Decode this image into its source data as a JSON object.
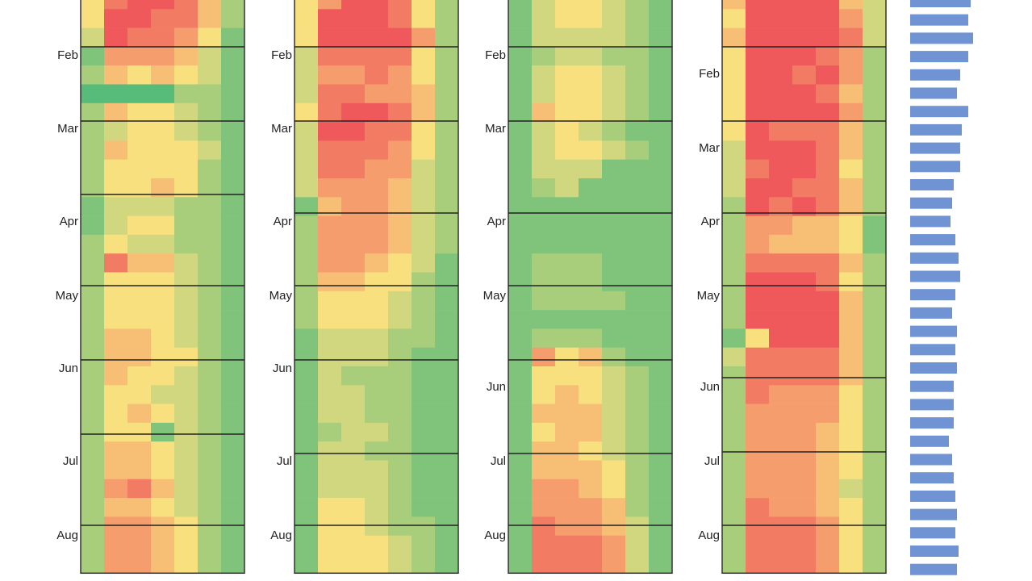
{
  "chart_data": [
    {
      "type": "heatmap",
      "clim": [
        1,
        9
      ],
      "colors": [
        "#57bb79",
        "#f9e07f",
        "#f0595b"
      ],
      "months": [
        "Feb",
        "Mar",
        "Apr",
        "May",
        "Jun",
        "Jul",
        "Aug"
      ],
      "rows": [
        [
          5,
          8,
          9,
          9,
          8,
          6,
          3
        ],
        [
          5,
          9,
          9,
          8,
          8,
          6,
          3
        ],
        [
          4,
          9,
          8,
          8,
          7,
          5,
          2
        ],
        [
          2,
          7,
          7,
          7,
          6,
          4,
          2
        ],
        [
          3,
          6,
          5,
          6,
          5,
          4,
          2
        ],
        [
          1,
          1,
          1,
          1,
          3,
          3,
          2
        ],
        [
          3,
          6,
          5,
          5,
          4,
          3,
          2
        ],
        [
          3,
          4,
          5,
          5,
          4,
          3,
          2
        ],
        [
          3,
          6,
          5,
          5,
          5,
          4,
          2
        ],
        [
          3,
          5,
          5,
          5,
          5,
          3,
          2
        ],
        [
          3,
          5,
          5,
          6,
          5,
          3,
          2
        ],
        [
          2,
          4,
          4,
          4,
          3,
          3,
          2
        ],
        [
          2,
          4,
          5,
          5,
          3,
          3,
          2
        ],
        [
          3,
          5,
          4,
          4,
          3,
          3,
          2
        ],
        [
          3,
          8,
          6,
          6,
          4,
          3,
          2
        ],
        [
          3,
          5,
          5,
          5,
          4,
          3,
          2
        ],
        [
          3,
          5,
          5,
          5,
          4,
          3,
          2
        ],
        [
          3,
          5,
          5,
          5,
          4,
          3,
          2
        ],
        [
          3,
          6,
          6,
          5,
          4,
          3,
          2
        ],
        [
          3,
          6,
          6,
          5,
          5,
          3,
          2
        ],
        [
          3,
          6,
          5,
          5,
          4,
          3,
          2
        ],
        [
          3,
          5,
          5,
          4,
          4,
          3,
          2
        ],
        [
          3,
          5,
          6,
          5,
          4,
          3,
          2
        ],
        [
          3,
          5,
          5,
          2,
          4,
          3,
          2
        ],
        [
          3,
          6,
          6,
          5,
          4,
          3,
          2
        ],
        [
          3,
          6,
          6,
          5,
          4,
          3,
          2
        ],
        [
          3,
          7,
          8,
          6,
          4,
          3,
          2
        ],
        [
          3,
          6,
          6,
          5,
          4,
          3,
          2
        ],
        [
          3,
          7,
          7,
          6,
          5,
          3,
          2
        ],
        [
          3,
          7,
          7,
          6,
          5,
          3,
          2
        ],
        [
          3,
          7,
          7,
          6,
          5,
          3,
          2
        ]
      ]
    },
    {
      "type": "heatmap",
      "clim": [
        1,
        9
      ],
      "colors": [
        "#57bb79",
        "#f9e07f",
        "#f0595b"
      ],
      "months": [
        "Feb",
        "Mar",
        "Apr",
        "May",
        "Jun",
        "Jul",
        "Aug"
      ],
      "rows": [
        [
          5,
          7,
          9,
          9,
          8,
          5,
          3
        ],
        [
          5,
          9,
          9,
          9,
          8,
          5,
          3
        ],
        [
          5,
          9,
          9,
          9,
          9,
          7,
          3
        ],
        [
          4,
          8,
          8,
          8,
          8,
          5,
          3
        ],
        [
          4,
          7,
          7,
          8,
          7,
          5,
          3
        ],
        [
          4,
          8,
          8,
          7,
          7,
          6,
          3
        ],
        [
          5,
          8,
          9,
          9,
          8,
          6,
          3
        ],
        [
          4,
          9,
          9,
          8,
          8,
          5,
          3
        ],
        [
          4,
          8,
          8,
          8,
          7,
          5,
          3
        ],
        [
          4,
          8,
          8,
          7,
          7,
          4,
          3
        ],
        [
          4,
          7,
          7,
          7,
          6,
          4,
          3
        ],
        [
          2,
          6,
          7,
          7,
          6,
          4,
          3
        ],
        [
          3,
          7,
          7,
          7,
          6,
          4,
          3
        ],
        [
          3,
          7,
          7,
          7,
          6,
          4,
          3
        ],
        [
          3,
          7,
          7,
          6,
          5,
          4,
          2
        ],
        [
          3,
          6,
          6,
          5,
          5,
          3,
          2
        ],
        [
          3,
          5,
          5,
          5,
          4,
          3,
          2
        ],
        [
          3,
          5,
          5,
          5,
          4,
          3,
          2
        ],
        [
          2,
          4,
          4,
          4,
          3,
          3,
          2
        ],
        [
          2,
          4,
          4,
          4,
          3,
          2,
          2
        ],
        [
          2,
          4,
          3,
          3,
          3,
          2,
          2
        ],
        [
          2,
          4,
          4,
          3,
          3,
          2,
          2
        ],
        [
          2,
          4,
          4,
          3,
          3,
          2,
          2
        ],
        [
          2,
          3,
          4,
          4,
          3,
          2,
          2
        ],
        [
          2,
          4,
          4,
          3,
          3,
          2,
          2
        ],
        [
          2,
          4,
          4,
          4,
          3,
          2,
          2
        ],
        [
          2,
          4,
          4,
          4,
          3,
          2,
          2
        ],
        [
          2,
          5,
          5,
          4,
          3,
          2,
          2
        ],
        [
          2,
          5,
          5,
          4,
          3,
          3,
          2
        ],
        [
          2,
          5,
          5,
          5,
          4,
          3,
          2
        ],
        [
          2,
          5,
          5,
          5,
          4,
          3,
          2
        ]
      ]
    },
    {
      "type": "heatmap",
      "clim": [
        1,
        9
      ],
      "colors": [
        "#57bb79",
        "#f9e07f",
        "#f0595b"
      ],
      "months": [
        "Feb",
        "Mar",
        "Apr",
        "May",
        "Jun",
        "Jul",
        "Aug"
      ],
      "rows": [
        [
          2,
          4,
          5,
          5,
          4,
          3,
          2
        ],
        [
          2,
          4,
          5,
          5,
          4,
          3,
          2
        ],
        [
          2,
          4,
          4,
          4,
          4,
          3,
          2
        ],
        [
          2,
          3,
          4,
          4,
          3,
          3,
          2
        ],
        [
          2,
          4,
          5,
          5,
          4,
          3,
          2
        ],
        [
          2,
          4,
          5,
          5,
          4,
          3,
          2
        ],
        [
          2,
          6,
          5,
          5,
          4,
          3,
          2
        ],
        [
          2,
          4,
          5,
          4,
          3,
          2,
          2
        ],
        [
          2,
          4,
          5,
          5,
          4,
          3,
          2
        ],
        [
          2,
          4,
          4,
          4,
          2,
          2,
          2
        ],
        [
          2,
          3,
          4,
          2,
          2,
          2,
          2
        ],
        [
          2,
          2,
          2,
          2,
          2,
          2,
          2
        ],
        [
          2,
          2,
          2,
          2,
          2,
          2,
          2
        ],
        [
          2,
          2,
          2,
          2,
          2,
          2,
          2
        ],
        [
          2,
          3,
          3,
          3,
          2,
          2,
          2
        ],
        [
          2,
          3,
          3,
          3,
          2,
          2,
          2
        ],
        [
          2,
          3,
          3,
          3,
          3,
          2,
          2
        ],
        [
          2,
          2,
          2,
          2,
          2,
          2,
          2
        ],
        [
          2,
          3,
          3,
          3,
          2,
          2,
          2
        ],
        [
          2,
          7,
          5,
          6,
          3,
          2,
          2
        ],
        [
          2,
          5,
          5,
          5,
          4,
          3,
          2
        ],
        [
          2,
          5,
          6,
          5,
          4,
          3,
          2
        ],
        [
          2,
          6,
          6,
          6,
          4,
          3,
          2
        ],
        [
          2,
          5,
          6,
          6,
          4,
          3,
          2
        ],
        [
          2,
          6,
          6,
          5,
          4,
          3,
          2
        ],
        [
          2,
          6,
          6,
          6,
          5,
          3,
          2
        ],
        [
          2,
          7,
          7,
          6,
          5,
          3,
          2
        ],
        [
          2,
          7,
          7,
          7,
          6,
          3,
          2
        ],
        [
          2,
          8,
          7,
          7,
          6,
          4,
          2
        ],
        [
          2,
          8,
          8,
          8,
          7,
          4,
          2
        ],
        [
          2,
          8,
          8,
          8,
          7,
          4,
          2
        ]
      ]
    },
    {
      "type": "heatmap",
      "clim": [
        1,
        9
      ],
      "colors": [
        "#57bb79",
        "#f9e07f",
        "#f0595b"
      ],
      "months": [
        "Feb",
        "Mar",
        "Apr",
        "May",
        "Jun",
        "Jul",
        "Aug"
      ],
      "rows": [
        [
          6,
          9,
          9,
          9,
          9,
          6,
          4
        ],
        [
          5,
          9,
          9,
          9,
          9,
          7,
          4
        ],
        [
          6,
          9,
          9,
          9,
          9,
          8,
          4
        ],
        [
          5,
          9,
          9,
          9,
          8,
          7,
          3
        ],
        [
          5,
          9,
          9,
          8,
          9,
          7,
          3
        ],
        [
          5,
          9,
          9,
          9,
          8,
          6,
          3
        ],
        [
          5,
          9,
          9,
          9,
          9,
          7,
          3
        ],
        [
          5,
          9,
          8,
          8,
          8,
          6,
          3
        ],
        [
          4,
          9,
          9,
          9,
          8,
          6,
          3
        ],
        [
          4,
          8,
          9,
          9,
          8,
          5,
          3
        ],
        [
          4,
          9,
          9,
          8,
          8,
          6,
          3
        ],
        [
          3,
          9,
          8,
          9,
          8,
          6,
          3
        ],
        [
          3,
          7,
          7,
          6,
          6,
          5,
          2
        ],
        [
          3,
          7,
          6,
          6,
          6,
          5,
          2
        ],
        [
          3,
          8,
          8,
          8,
          8,
          6,
          3
        ],
        [
          3,
          9,
          9,
          9,
          8,
          5,
          3
        ],
        [
          3,
          9,
          9,
          9,
          9,
          6,
          3
        ],
        [
          3,
          9,
          9,
          9,
          9,
          6,
          3
        ],
        [
          2,
          5,
          9,
          9,
          9,
          6,
          3
        ],
        [
          4,
          8,
          8,
          8,
          8,
          6,
          3
        ],
        [
          3,
          8,
          8,
          8,
          8,
          6,
          3
        ],
        [
          3,
          8,
          7,
          7,
          7,
          5,
          3
        ],
        [
          3,
          7,
          7,
          7,
          7,
          5,
          3
        ],
        [
          3,
          7,
          7,
          7,
          6,
          5,
          3
        ],
        [
          3,
          7,
          7,
          7,
          6,
          5,
          3
        ],
        [
          3,
          7,
          7,
          7,
          6,
          5,
          3
        ],
        [
          3,
          7,
          7,
          7,
          6,
          4,
          3
        ],
        [
          3,
          8,
          7,
          7,
          6,
          5,
          3
        ],
        [
          3,
          8,
          8,
          8,
          7,
          5,
          3
        ],
        [
          3,
          8,
          8,
          8,
          7,
          5,
          3
        ],
        [
          3,
          8,
          8,
          8,
          7,
          5,
          3
        ]
      ]
    },
    {
      "type": "bar",
      "color": "#6f93d3",
      "values": [
        75,
        72,
        78,
        72,
        62,
        58,
        72,
        64,
        62,
        62,
        54,
        52,
        50,
        56,
        60,
        62,
        56,
        52,
        58,
        56,
        58,
        54,
        54,
        54,
        48,
        52,
        54,
        56,
        58,
        56,
        60,
        58
      ]
    }
  ]
}
